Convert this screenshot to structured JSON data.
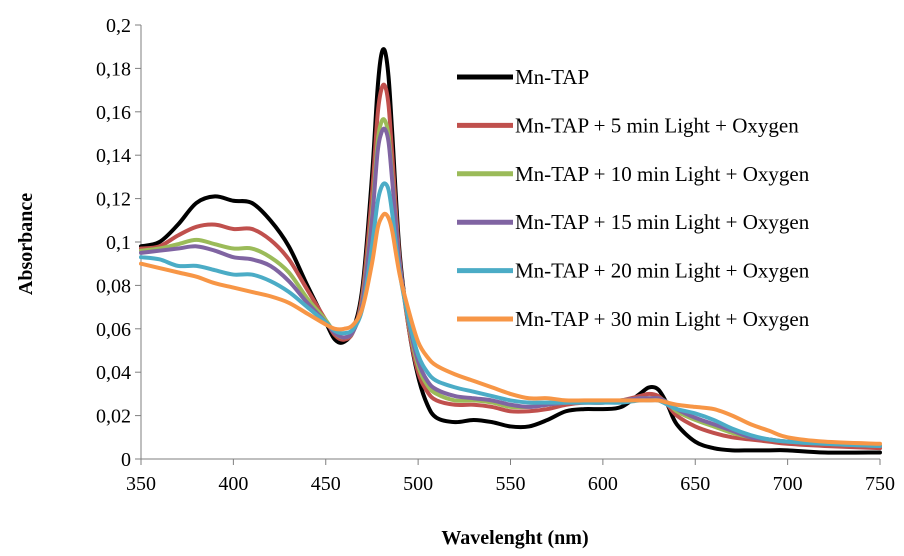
{
  "chart_data": {
    "type": "line",
    "title": "",
    "xlabel": "Wavelenght (nm)",
    "ylabel": "Absorbance",
    "xlim": [
      350,
      750
    ],
    "ylim": [
      0,
      0.2
    ],
    "x_ticks": [
      350,
      400,
      450,
      500,
      550,
      600,
      650,
      700,
      750
    ],
    "x_tick_labels": [
      "350",
      "400",
      "450",
      "500",
      "550",
      "600",
      "650",
      "700",
      "750"
    ],
    "y_ticks": [
      0,
      0.02,
      0.04,
      0.06,
      0.08,
      0.1,
      0.12,
      0.14,
      0.16,
      0.18,
      0.2
    ],
    "y_tick_labels": [
      "0",
      "0,02",
      "0,04",
      "0,06",
      "0,08",
      "0,1",
      "0,12",
      "0,14",
      "0,16",
      "0,18",
      "0,2"
    ],
    "grid": false,
    "legend_position": "top-right",
    "x": [
      350,
      360,
      370,
      380,
      390,
      400,
      410,
      420,
      430,
      440,
      450,
      455,
      460,
      465,
      470,
      475,
      478,
      480,
      482,
      484,
      486,
      490,
      495,
      500,
      505,
      510,
      520,
      530,
      540,
      550,
      560,
      570,
      580,
      590,
      600,
      610,
      620,
      625,
      630,
      635,
      640,
      650,
      660,
      670,
      680,
      690,
      700,
      720,
      750
    ],
    "series": [
      {
        "name": "Mn-TAP",
        "color": "#000000",
        "values": [
          0.098,
          0.1,
          0.108,
          0.118,
          0.121,
          0.119,
          0.118,
          0.11,
          0.098,
          0.08,
          0.063,
          0.055,
          0.054,
          0.06,
          0.08,
          0.13,
          0.17,
          0.186,
          0.188,
          0.176,
          0.15,
          0.095,
          0.06,
          0.038,
          0.025,
          0.019,
          0.017,
          0.018,
          0.017,
          0.015,
          0.015,
          0.018,
          0.022,
          0.023,
          0.023,
          0.024,
          0.03,
          0.033,
          0.032,
          0.025,
          0.016,
          0.008,
          0.005,
          0.004,
          0.004,
          0.004,
          0.004,
          0.003,
          0.003
        ]
      },
      {
        "name": "Mn-TAP + 5 min Light + Oxygen",
        "color": "#c0504d",
        "values": [
          0.097,
          0.098,
          0.103,
          0.107,
          0.108,
          0.106,
          0.106,
          0.101,
          0.092,
          0.078,
          0.064,
          0.057,
          0.055,
          0.059,
          0.077,
          0.122,
          0.158,
          0.17,
          0.172,
          0.163,
          0.14,
          0.092,
          0.06,
          0.04,
          0.031,
          0.027,
          0.025,
          0.025,
          0.024,
          0.022,
          0.022,
          0.023,
          0.025,
          0.026,
          0.026,
          0.027,
          0.029,
          0.03,
          0.029,
          0.025,
          0.02,
          0.015,
          0.012,
          0.01,
          0.009,
          0.008,
          0.007,
          0.006,
          0.005
        ]
      },
      {
        "name": "Mn-TAP + 10 min Light + Oxygen",
        "color": "#9bbb59",
        "values": [
          0.096,
          0.097,
          0.099,
          0.101,
          0.099,
          0.097,
          0.097,
          0.093,
          0.086,
          0.074,
          0.064,
          0.058,
          0.056,
          0.059,
          0.074,
          0.113,
          0.145,
          0.155,
          0.156,
          0.149,
          0.13,
          0.09,
          0.062,
          0.043,
          0.034,
          0.03,
          0.027,
          0.027,
          0.026,
          0.024,
          0.024,
          0.025,
          0.026,
          0.026,
          0.026,
          0.027,
          0.028,
          0.028,
          0.028,
          0.026,
          0.022,
          0.018,
          0.015,
          0.012,
          0.01,
          0.009,
          0.008,
          0.007,
          0.006
        ]
      },
      {
        "name": "Mn-TAP + 15 min Light + Oxygen",
        "color": "#8064a2",
        "values": [
          0.095,
          0.096,
          0.097,
          0.098,
          0.096,
          0.093,
          0.092,
          0.089,
          0.082,
          0.072,
          0.063,
          0.058,
          0.056,
          0.059,
          0.073,
          0.11,
          0.141,
          0.15,
          0.152,
          0.146,
          0.128,
          0.09,
          0.063,
          0.045,
          0.036,
          0.032,
          0.029,
          0.028,
          0.027,
          0.025,
          0.024,
          0.025,
          0.026,
          0.026,
          0.026,
          0.027,
          0.028,
          0.028,
          0.028,
          0.026,
          0.023,
          0.019,
          0.016,
          0.013,
          0.01,
          0.009,
          0.008,
          0.007,
          0.006
        ]
      },
      {
        "name": "Mn-TAP + 20 min Light + Oxygen",
        "color": "#4bacc6",
        "values": [
          0.093,
          0.092,
          0.089,
          0.089,
          0.087,
          0.085,
          0.085,
          0.082,
          0.077,
          0.07,
          0.063,
          0.059,
          0.058,
          0.06,
          0.07,
          0.098,
          0.118,
          0.125,
          0.127,
          0.124,
          0.113,
          0.086,
          0.064,
          0.048,
          0.04,
          0.036,
          0.033,
          0.031,
          0.029,
          0.027,
          0.026,
          0.026,
          0.026,
          0.026,
          0.026,
          0.026,
          0.027,
          0.027,
          0.027,
          0.025,
          0.023,
          0.021,
          0.018,
          0.014,
          0.011,
          0.009,
          0.008,
          0.007,
          0.006
        ]
      },
      {
        "name": "Mn-TAP + 30 min Light + Oxygen",
        "color": "#f79646",
        "values": [
          0.09,
          0.088,
          0.086,
          0.084,
          0.081,
          0.079,
          0.077,
          0.075,
          0.072,
          0.067,
          0.062,
          0.06,
          0.06,
          0.062,
          0.07,
          0.09,
          0.106,
          0.111,
          0.113,
          0.111,
          0.105,
          0.085,
          0.068,
          0.054,
          0.047,
          0.043,
          0.039,
          0.036,
          0.033,
          0.03,
          0.028,
          0.028,
          0.027,
          0.027,
          0.027,
          0.027,
          0.027,
          0.027,
          0.027,
          0.026,
          0.025,
          0.024,
          0.023,
          0.02,
          0.016,
          0.013,
          0.01,
          0.008,
          0.007
        ]
      }
    ]
  }
}
